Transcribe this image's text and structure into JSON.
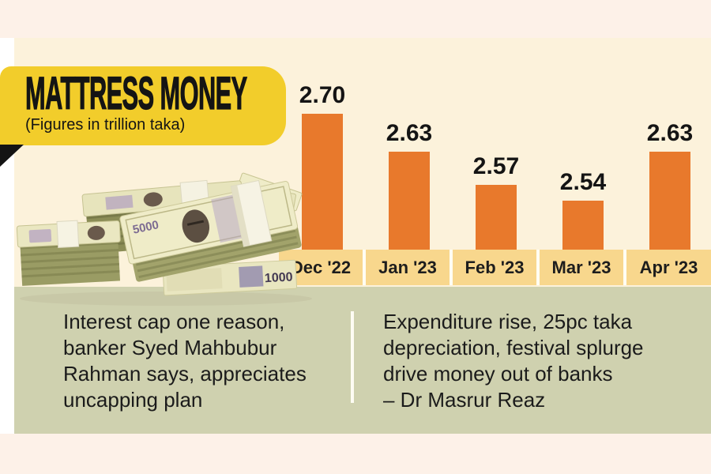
{
  "header": {
    "title": "MATTRESS MONEY",
    "subtitle": "(Figures in trillion taka)"
  },
  "chart_data": {
    "type": "bar",
    "title": "MATTRESS MONEY",
    "subtitle": "(Figures in trillion taka)",
    "unit": "trillion taka",
    "categories": [
      "Dec '22",
      "Jan '23",
      "Feb '23",
      "Mar '23",
      "Apr '23"
    ],
    "values": [
      2.7,
      2.63,
      2.57,
      2.54,
      2.63
    ],
    "value_labels": [
      "2.70",
      "2.63",
      "2.57",
      "2.54",
      "2.63"
    ],
    "ylim": [
      2.45,
      2.75
    ],
    "grid": false,
    "legend": false,
    "bar_color": "#e8792c",
    "axis_strip_color": "#f8d78d"
  },
  "quotes": {
    "left": {
      "lines": [
        "Interest cap one reason,",
        "banker Syed Mahbubur",
        "Rahman says, appreciates",
        "uncapping plan"
      ]
    },
    "right": {
      "lines": [
        "Expenditure rise, 25pc taka",
        "depreciation, festival splurge",
        "drive money out of banks",
        "– Dr Masrur Reaz"
      ]
    }
  },
  "illustration": {
    "name": "taka-banknote-stacks",
    "denominations": [
      "5000",
      "1000"
    ]
  },
  "colors": {
    "orange": "#e8792c",
    "amber": "#f8d78d",
    "yellow": "#f2cd2b",
    "green": "#cfd1af",
    "cream": "#fcf2db",
    "band": "#fdf1e8",
    "text": "#141414"
  }
}
